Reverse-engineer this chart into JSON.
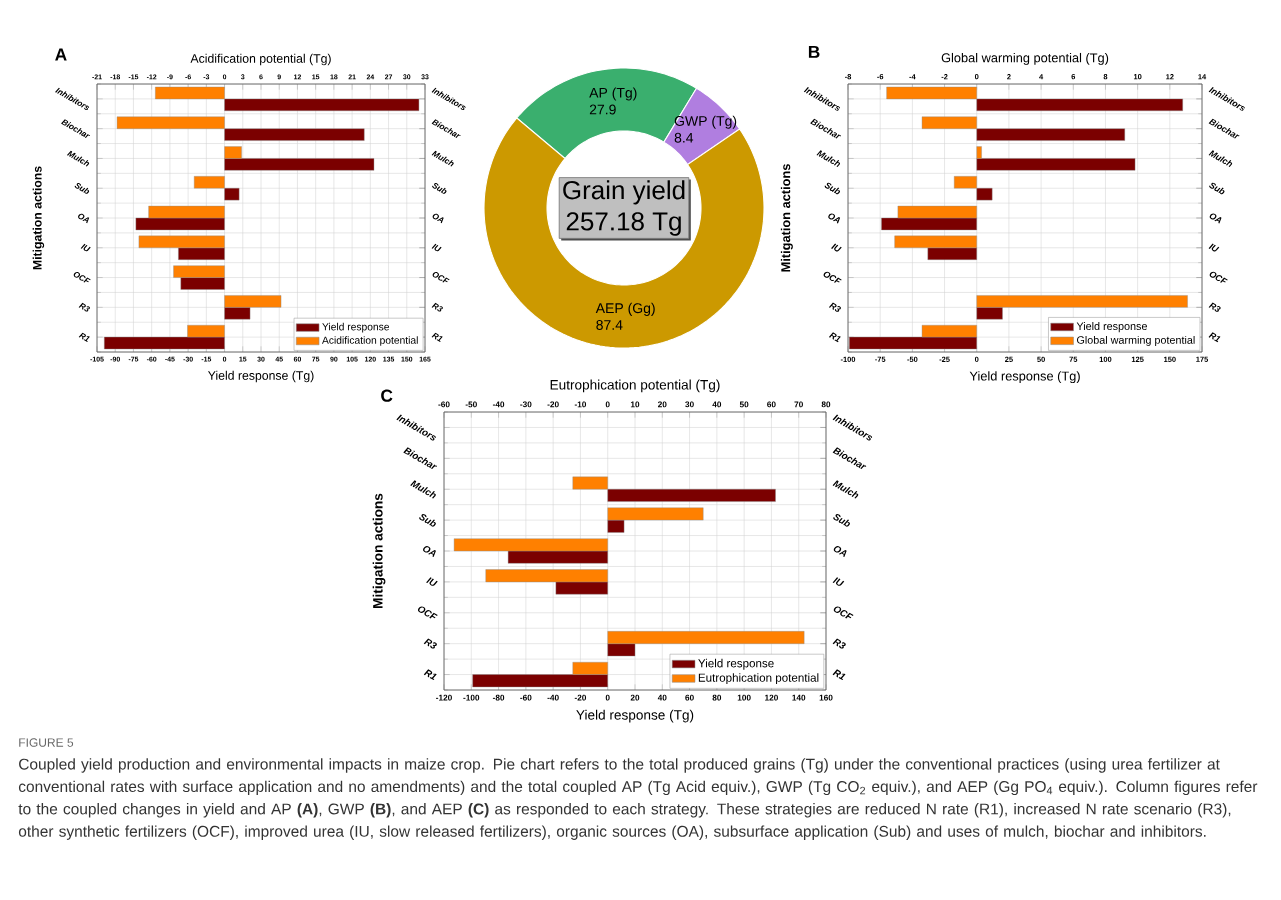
{
  "chart_data": [
    {
      "type": "bar",
      "orientation": "horizontal",
      "title": "A",
      "xlabel": "Yield response (Tg)",
      "x2label": "Acidification potential (Tg)",
      "ylabel": "Mitigation actions",
      "categories": [
        "Inhibitors",
        "Biochar",
        "Mulch",
        "Sub",
        "OA",
        "IU",
        "OCF",
        "R3",
        "R1"
      ],
      "series": [
        {
          "name": "Yield response",
          "color": "#7b0000",
          "values": [
            160,
            115,
            123,
            12,
            -73,
            -38,
            -36,
            21,
            -99
          ]
        },
        {
          "name": "Acidification potential",
          "color": "#ff8000",
          "axis": "x2",
          "values": [
            -11.4,
            -17.7,
            2.8,
            -5.0,
            -12.5,
            -14.1,
            -8.4,
            9.3,
            -6.1
          ]
        }
      ],
      "xlim": [
        -105,
        165
      ],
      "xticks": [
        -105,
        -90,
        -75,
        -60,
        -45,
        -30,
        -15,
        0,
        15,
        30,
        45,
        60,
        75,
        90,
        105,
        120,
        135,
        150,
        165
      ],
      "x2lim": [
        -21,
        33
      ],
      "x2ticks": [
        -21,
        -18,
        -15,
        -12,
        -9,
        -6,
        -3,
        0,
        3,
        6,
        9,
        12,
        15,
        18,
        21,
        24,
        27,
        30,
        33
      ],
      "grid": true,
      "legend": "bottom right"
    },
    {
      "type": "donut",
      "categories": [
        "AP (Tg)",
        "GWP (Tg)",
        "AEP (Gg)"
      ],
      "values": [
        27.9,
        8.4,
        87.4
      ],
      "colors": [
        "#3aaf6e",
        "#b07ee0",
        "#cc9900"
      ],
      "data_labels": true,
      "annotations": [
        "Grain yield",
        "257.18 Tg"
      ]
    },
    {
      "type": "bar",
      "orientation": "horizontal",
      "title": "B",
      "xlabel": "Yield response (Tg)",
      "x2label": "Global warming potential (Tg)",
      "ylabel": "Mitigation actions",
      "categories": [
        "Inhibitors",
        "Biochar",
        "Mulch",
        "Sub",
        "OA",
        "IU",
        "OCF",
        "R3",
        "R1"
      ],
      "series": [
        {
          "name": "Yield response",
          "color": "#7b0000",
          "values": [
            160,
            115,
            123,
            12,
            -74,
            -38,
            null,
            20,
            -99
          ]
        },
        {
          "name": "Global warming potential",
          "color": "#ff8000",
          "axis": "x2",
          "values": [
            -5.6,
            -3.4,
            0.3,
            -1.4,
            -4.9,
            -5.1,
            null,
            13.1,
            -3.4
          ]
        }
      ],
      "xlim": [
        -100,
        175
      ],
      "xticks": [
        -100,
        -75,
        -50,
        -25,
        0,
        25,
        50,
        75,
        100,
        125,
        150,
        175
      ],
      "x2lim": [
        -8,
        14
      ],
      "x2ticks": [
        -8,
        -6,
        -4,
        -2,
        0,
        2,
        4,
        6,
        8,
        10,
        12,
        14
      ],
      "grid": true,
      "legend": "bottom right"
    },
    {
      "type": "bar",
      "orientation": "horizontal",
      "title": "C",
      "xlabel": "Yield response (Tg)",
      "x2label": "Eutrophication potential (Tg)",
      "ylabel": "Mitigation actions",
      "categories": [
        "Inhibitors",
        "Biochar",
        "Mulch",
        "Sub",
        "OA",
        "IU",
        "OCF",
        "R3",
        "R1"
      ],
      "series": [
        {
          "name": "Yield response",
          "color": "#7b0000",
          "values": [
            null,
            null,
            123,
            12,
            -73,
            -38,
            null,
            20,
            -99
          ]
        },
        {
          "name": "Eutrophication potential",
          "color": "#ff8000",
          "axis": "x2",
          "values": [
            null,
            null,
            -12.8,
            35,
            -56.3,
            -44.7,
            null,
            72,
            -12.8
          ]
        }
      ],
      "xlim": [
        -120,
        160
      ],
      "xticks": [
        -120,
        -100,
        -80,
        -60,
        -40,
        -20,
        0,
        20,
        40,
        60,
        80,
        100,
        120,
        140,
        160
      ],
      "x2lim": [
        -60,
        80
      ],
      "x2ticks": [
        -60,
        -50,
        -40,
        -30,
        -20,
        -10,
        0,
        10,
        20,
        30,
        40,
        50,
        60,
        70,
        80
      ],
      "grid": true,
      "legend": "bottom right"
    },
    {
      "type": "other",
      "annotations": [
        "FIGURE 5",
        "Coupled yield production and environmental impacts in maize crop. Pie chart refers to the total produced grains (Tg) under the conventional practices (using urea fertilizer at conventional rates with surface application and no amendments) and the total coupled AP (Tg Acid equiv.), GWP (Tg CO$_{2}$ equiv.), and AEP (Gg PO$_{4}$ equiv.). Column figures refer to the coupled changes in yield and AP **(A)**, GWP **(B)**, and AEP **(C)** as responded to each strategy. These strategies are reduced N rate (R1), increased N rate scenario (R3), other synthetic fertilizers (OCF), improved urea (IU, slow released fertilizers), organic sources (OA), subsurface application (Sub) and uses of mulch, biochar and inhibitors."
      ]
    }
  ]
}
